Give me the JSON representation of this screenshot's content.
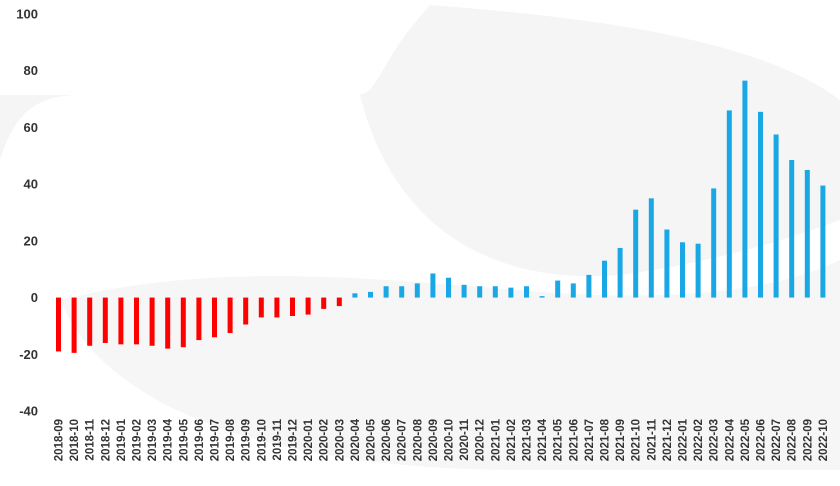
{
  "chart_data": {
    "type": "bar",
    "title": "",
    "xlabel": "",
    "ylabel": "",
    "ylim": [
      -40,
      100
    ],
    "yticks": [
      "100",
      "80",
      "60",
      "40",
      "20",
      "0",
      "-20",
      "-40"
    ],
    "grid": false,
    "legend": "none",
    "colors": {
      "negative": "#ff0000",
      "positive": "#1aa7e6",
      "watermark": "#ececec"
    },
    "categories": [
      "2018-09",
      "2018-10",
      "2018-11",
      "2018-12",
      "2019-01",
      "2019-02",
      "2019-03",
      "2019-04",
      "2019-05",
      "2019-06",
      "2019-07",
      "2019-08",
      "2019-09",
      "2019-10",
      "2019-11",
      "2019-12",
      "2020-01",
      "2020-02",
      "2020-03",
      "2020-04",
      "2020-05",
      "2020-06",
      "2020-07",
      "2020-08",
      "2020-09",
      "2020-10",
      "2020-11",
      "2020-12",
      "2021-01",
      "2021-02",
      "2021-03",
      "2021-04",
      "2021-05",
      "2021-06",
      "2021-07",
      "2021-08",
      "2021-09",
      "2021-10",
      "2021-11",
      "2021-12",
      "2022-01",
      "2022-02",
      "2022-03",
      "2022-04",
      "2022-05",
      "2022-06",
      "2022-07",
      "2022-08",
      "2022-09",
      "2022-10"
    ],
    "values": [
      -19,
      -19.5,
      -17,
      -16,
      -16.5,
      -16.5,
      -17,
      -18,
      -17.5,
      -15,
      -14,
      -12.5,
      -9.5,
      -7,
      -7,
      -6.5,
      -6,
      -4,
      -3,
      1.5,
      2,
      4,
      4,
      5,
      8.5,
      7,
      4.5,
      4,
      4,
      3.5,
      4,
      0.5,
      6,
      5,
      8,
      13,
      17.5,
      31,
      35,
      24,
      19.5,
      19,
      38.5,
      66,
      76.5,
      65.5,
      57.5,
      48.5,
      45,
      39.5
    ]
  }
}
